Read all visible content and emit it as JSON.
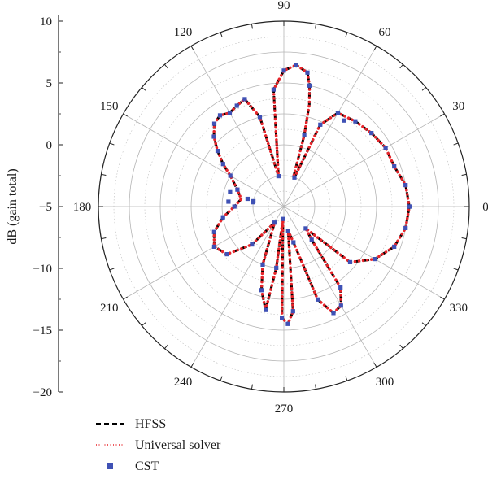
{
  "chart_data": {
    "type": "polar-line",
    "ylabel": "dB (gain total)",
    "r_ticks": [
      10,
      5,
      0,
      -5,
      -10,
      -15,
      -20
    ],
    "r_range": [
      -20,
      10
    ],
    "angle_ticks": [
      0,
      30,
      60,
      90,
      120,
      150,
      180,
      210,
      240,
      270,
      300,
      330
    ],
    "grid": true,
    "legend_position": "bottom-left",
    "colors": {
      "HFSS": "#000000",
      "Universal solver": "#e8242a",
      "CST": "#3f51b5"
    },
    "series": [
      {
        "name": "HFSS",
        "style": "dashed",
        "theta_deg": [
          0,
          10,
          20,
          30,
          40,
          50,
          60,
          66,
          70,
          72,
          74,
          76,
          78,
          80,
          85,
          90,
          95,
          100,
          105,
          110,
          115,
          120,
          125,
          130,
          135,
          140,
          145,
          150,
          160,
          170,
          180,
          190,
          200,
          210,
          220,
          230,
          240,
          250,
          255,
          260,
          263,
          266,
          269,
          272,
          275,
          280,
          285,
          290,
          295,
          300,
          305,
          310,
          315,
          320,
          330,
          340,
          350,
          360
        ],
        "r_db": [
          0.3,
          0.0,
          -1.0,
          -1.0,
          -1.5,
          -2.0,
          -2.5,
          -5.5,
          -15,
          -15,
          -8,
          -3,
          0,
          2,
          3,
          2,
          -1,
          -15,
          -5,
          -1.5,
          -2,
          -2.5,
          -2.0,
          -2.5,
          -4,
          -6,
          -8,
          -10,
          -12,
          -13,
          -12,
          -10,
          -8,
          -7,
          -8,
          -12,
          -17,
          -10,
          -6,
          -3,
          -10,
          -18,
          -2,
          -1,
          -3,
          -16,
          -14,
          -4,
          -1,
          -1.5,
          -4,
          -13,
          -15,
          -6,
          -3,
          -1,
          0,
          0.3
        ]
      },
      {
        "name": "Universal solver",
        "style": "dotted",
        "theta_deg": [
          0,
          10,
          20,
          30,
          40,
          50,
          60,
          66,
          70,
          72,
          74,
          76,
          78,
          80,
          85,
          90,
          95,
          100,
          105,
          110,
          115,
          120,
          125,
          130,
          135,
          140,
          145,
          150,
          160,
          170,
          180,
          190,
          200,
          210,
          220,
          230,
          240,
          250,
          255,
          260,
          263,
          266,
          269,
          272,
          275,
          280,
          285,
          290,
          295,
          300,
          305,
          310,
          315,
          320,
          330,
          340,
          350,
          360
        ],
        "r_db": [
          0.3,
          0.0,
          -1.0,
          -1.0,
          -1.5,
          -2.0,
          -2.5,
          -5.5,
          -15,
          -15,
          -8,
          -3,
          0,
          2,
          3,
          2,
          -1,
          -15,
          -5,
          -1.5,
          -2,
          -2.5,
          -2.0,
          -2.5,
          -4,
          -6,
          -8,
          -10,
          -12,
          -13,
          -12,
          -10,
          -8,
          -7,
          -8,
          -12,
          -17,
          -10,
          -6,
          -3,
          -10,
          -18,
          -2,
          -1,
          -3,
          -16,
          -14,
          -4,
          -1,
          -1.5,
          -4,
          -13,
          -15,
          -6,
          -3,
          -1,
          0,
          0.3
        ]
      },
      {
        "name": "CST",
        "style": "markers",
        "theta_deg": [
          0,
          10,
          20,
          30,
          40,
          50,
          55,
          60,
          66,
          70,
          74,
          78,
          80,
          85,
          90,
          95,
          100,
          105,
          110,
          115,
          120,
          125,
          130,
          135,
          140,
          145,
          150,
          160,
          165,
          168,
          170,
          172,
          175,
          180,
          190,
          200,
          210,
          220,
          230,
          240,
          250,
          255,
          260,
          263,
          266,
          269,
          272,
          275,
          280,
          285,
          290,
          295,
          300,
          305,
          310,
          315,
          320,
          330,
          340,
          350,
          360
        ],
        "r_db": [
          0.3,
          0.0,
          -1.0,
          -1.0,
          -1.5,
          -2.0,
          -3.0,
          -2.5,
          -5.5,
          -15,
          -8,
          0,
          2,
          3,
          2,
          -1,
          -15,
          -5,
          -1.5,
          -2,
          -2.5,
          -2.0,
          -2.5,
          -4,
          -6,
          -8,
          -10,
          -12,
          -11,
          -14,
          -15,
          -15,
          -11,
          -12,
          -10,
          -8,
          -7,
          -8,
          -12,
          -17,
          -10,
          -6,
          -3,
          -10,
          -18,
          -2,
          -1,
          -3,
          -16,
          -14,
          -4,
          -1,
          -1.5,
          -4,
          -13,
          -15,
          -6,
          -3,
          -1,
          0,
          0.3
        ]
      }
    ]
  }
}
